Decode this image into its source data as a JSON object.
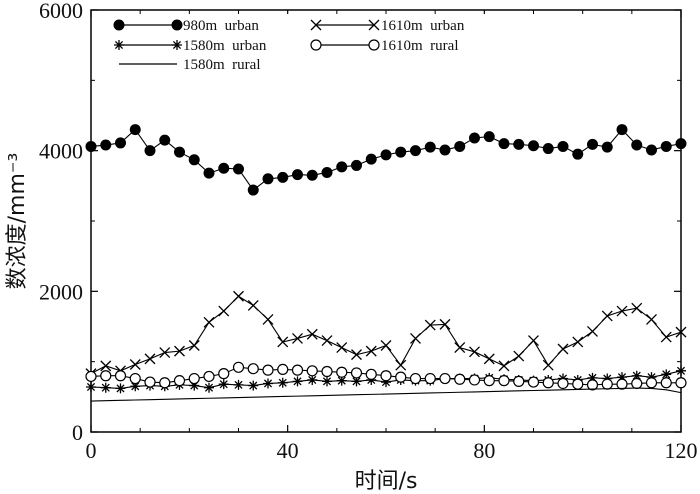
{
  "chart_data": {
    "type": "line",
    "title": "",
    "xlabel": "时间/s",
    "ylabel": "数浓度/mm⁻³",
    "xlim": [
      0,
      120
    ],
    "ylim": [
      0,
      6000
    ],
    "xticks": [
      "0",
      "40",
      "80",
      "120"
    ],
    "yticks": [
      "0",
      "2000",
      "4000",
      "6000"
    ],
    "grid": false,
    "legend_position": "top-left",
    "x": [
      0,
      3,
      6,
      9,
      12,
      15,
      18,
      21,
      24,
      27,
      30,
      33,
      36,
      39,
      42,
      45,
      48,
      51,
      54,
      57,
      60,
      63,
      66,
      69,
      72,
      75,
      78,
      81,
      84,
      87,
      90,
      93,
      96,
      99,
      102,
      105,
      108,
      111,
      114,
      117,
      120
    ],
    "series": [
      {
        "name": "980m  urban",
        "marker": "filled-circle",
        "color": "#000000",
        "values": [
          4060,
          4080,
          4110,
          4300,
          4000,
          4150,
          3980,
          3870,
          3680,
          3750,
          3740,
          3440,
          3600,
          3620,
          3660,
          3650,
          3690,
          3770,
          3790,
          3880,
          3940,
          3980,
          4000,
          4050,
          4010,
          4060,
          4180,
          4200,
          4100,
          4090,
          4070,
          4030,
          4060,
          3950,
          4090,
          4050,
          4300,
          4080,
          4010,
          4060,
          4100
        ]
      },
      {
        "name": "1610m  urban",
        "marker": "x",
        "color": "#000000",
        "values": [
          830,
          940,
          870,
          960,
          1040,
          1130,
          1150,
          1230,
          1560,
          1720,
          1930,
          1800,
          1600,
          1280,
          1330,
          1390,
          1300,
          1200,
          1100,
          1150,
          1230,
          950,
          1330,
          1520,
          1530,
          1200,
          1140,
          1040,
          940,
          1080,
          1300,
          950,
          1180,
          1280,
          1430,
          1650,
          1720,
          1760,
          1600,
          1350,
          1420
        ]
      },
      {
        "name": "1580m  urban",
        "marker": "asterisk",
        "color": "#000000",
        "values": [
          640,
          630,
          620,
          650,
          660,
          650,
          670,
          660,
          630,
          680,
          670,
          660,
          690,
          700,
          720,
          740,
          720,
          730,
          720,
          740,
          710,
          740,
          730,
          730,
          760,
          760,
          760,
          770,
          750,
          740,
          730,
          740,
          760,
          740,
          770,
          760,
          780,
          800,
          780,
          820,
          870
        ]
      },
      {
        "name": "1610m  rural",
        "marker": "open-circle",
        "color": "#000000",
        "values": [
          790,
          800,
          800,
          760,
          710,
          700,
          730,
          760,
          790,
          830,
          920,
          900,
          880,
          890,
          880,
          870,
          860,
          850,
          840,
          820,
          800,
          780,
          760,
          760,
          760,
          750,
          740,
          730,
          730,
          720,
          710,
          700,
          690,
          680,
          670,
          680,
          680,
          690,
          700,
          700,
          700
        ]
      },
      {
        "name": "1580m  rural",
        "marker": "none",
        "color": "#000000",
        "values": [
          440,
          445,
          450,
          455,
          460,
          465,
          470,
          475,
          480,
          485,
          490,
          495,
          500,
          505,
          510,
          515,
          520,
          525,
          530,
          535,
          540,
          545,
          550,
          555,
          560,
          565,
          570,
          575,
          580,
          585,
          590,
          595,
          600,
          605,
          610,
          615,
          620,
          625,
          620,
          600,
          560
        ]
      }
    ]
  }
}
